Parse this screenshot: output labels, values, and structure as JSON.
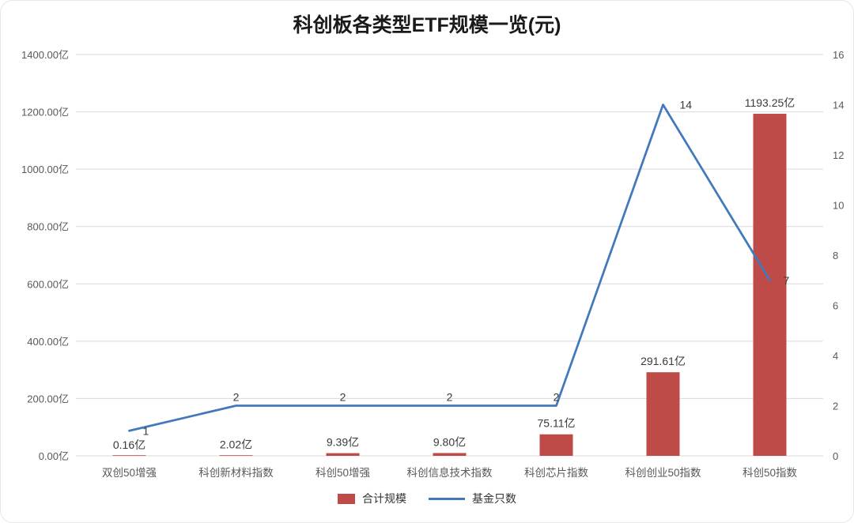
{
  "chart_data": {
    "type": "bar",
    "combo": "bar+line",
    "title": "科创板各类型ETF规模一览(元)",
    "categories": [
      "双创50增强",
      "科创新材料指数",
      "科创50增强",
      "科创信息技术指数",
      "科创芯片指数",
      "科创创业50指数",
      "科创50指数"
    ],
    "series": [
      {
        "name": "合计规模",
        "type": "bar",
        "axis": "left",
        "unit": "亿",
        "values": [
          0.16,
          2.02,
          9.39,
          9.8,
          75.11,
          291.61,
          1193.25
        ],
        "labels": [
          "0.16亿",
          "2.02亿",
          "9.39亿",
          "9.80亿",
          "75.11亿",
          "291.61亿",
          "1193.25亿"
        ],
        "color": "#BE4B48"
      },
      {
        "name": "基金只数",
        "type": "line",
        "axis": "right",
        "values": [
          1,
          2,
          2,
          2,
          2,
          14,
          7
        ],
        "labels": [
          "1",
          "2",
          "2",
          "2",
          "2",
          "14",
          "7"
        ],
        "color": "#4279BD"
      }
    ],
    "left_axis": {
      "min": 0,
      "max": 1400,
      "step": 200,
      "tick_labels": [
        "0.00亿",
        "200.00亿",
        "400.00亿",
        "600.00亿",
        "800.00亿",
        "1000.00亿",
        "1200.00亿",
        "1400.00亿"
      ]
    },
    "right_axis": {
      "min": 0,
      "max": 16,
      "step": 2,
      "tick_labels": [
        "0",
        "2",
        "4",
        "6",
        "8",
        "10",
        "12",
        "14",
        "16"
      ]
    },
    "grid": true,
    "legend_position": "bottom"
  }
}
